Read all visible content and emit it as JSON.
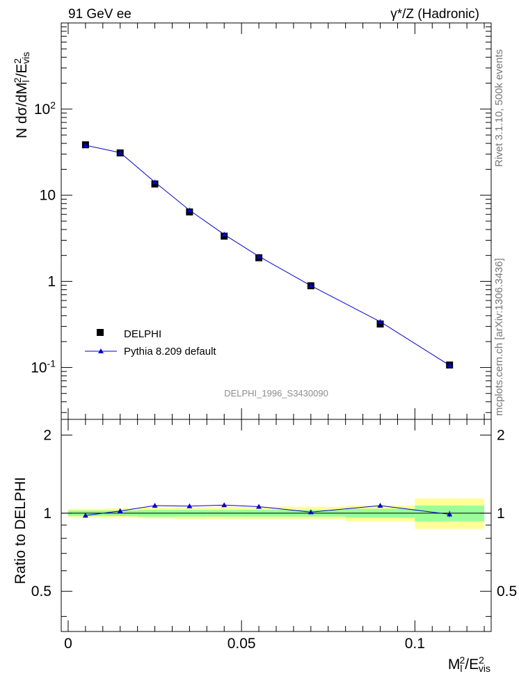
{
  "labels": {
    "top_left": "91 GeV ee",
    "top_right": "γ*/Z (Hadronic)",
    "y_main_parts": [
      "N dσ/dM",
      "l",
      "2",
      "/E",
      "2",
      "vis"
    ],
    "y_ratio": "Ratio to DELPHI",
    "x_parts": [
      "M",
      "l",
      "2",
      "/E",
      "2",
      "vis"
    ],
    "analysis": "DELPHI_1996_S3430090",
    "side_rivet": "Rivet 3.1.10,  500k events",
    "side_mcplots": "mcplots.cern.ch [arXiv:1306.3436]"
  },
  "colors": {
    "data_marker": "#000000",
    "mc_line": "#0000cc",
    "band_inner": "#99ff99",
    "band_outer": "#ffff99"
  },
  "chart_data": [
    {
      "type": "scatter",
      "panel": "main",
      "xlim": [
        -0.002,
        0.122
      ],
      "ylim": [
        0.025,
        1000
      ],
      "yscale": "log",
      "ytick_labels": [
        "10^-1",
        "1",
        "10",
        "10^2"
      ],
      "legend_position": "bottom-left",
      "series": [
        {
          "name": "DELPHI",
          "marker": "square",
          "x": [
            0.005,
            0.015,
            0.025,
            0.035,
            0.045,
            0.055,
            0.07,
            0.09,
            0.11
          ],
          "y": [
            38.5,
            31.0,
            13.5,
            6.4,
            3.35,
            1.88,
            0.89,
            0.32,
            0.107
          ]
        },
        {
          "name": "Pythia 8.209 default",
          "marker": "triangle",
          "x": [
            0.005,
            0.015,
            0.025,
            0.035,
            0.045,
            0.055,
            0.07,
            0.09,
            0.11
          ],
          "y": [
            38.0,
            31.2,
            14.2,
            6.7,
            3.5,
            1.95,
            0.89,
            0.34,
            0.106
          ]
        }
      ]
    },
    {
      "type": "line",
      "panel": "ratio",
      "xlim": [
        -0.002,
        0.122
      ],
      "ylim": [
        0.35,
        2.3
      ],
      "xtick_labels": [
        "0",
        "0.05",
        "0.1"
      ],
      "ytick_labels": [
        "0.5",
        "1",
        "2"
      ],
      "bins": [
        [
          0.0,
          0.01
        ],
        [
          0.01,
          0.02
        ],
        [
          0.02,
          0.03
        ],
        [
          0.03,
          0.04
        ],
        [
          0.04,
          0.05
        ],
        [
          0.05,
          0.06
        ],
        [
          0.06,
          0.08
        ],
        [
          0.08,
          0.1
        ],
        [
          0.1,
          0.12
        ]
      ],
      "band_inner": [
        [
          0.975,
          1.025
        ],
        [
          0.975,
          1.025
        ],
        [
          0.97,
          1.03
        ],
        [
          0.97,
          1.03
        ],
        [
          0.97,
          1.03
        ],
        [
          0.97,
          1.03
        ],
        [
          0.97,
          1.03
        ],
        [
          0.96,
          1.04
        ],
        [
          0.93,
          1.07
        ]
      ],
      "band_outer": [
        [
          0.96,
          1.04
        ],
        [
          0.96,
          1.045
        ],
        [
          0.955,
          1.05
        ],
        [
          0.95,
          1.05
        ],
        [
          0.95,
          1.055
        ],
        [
          0.95,
          1.055
        ],
        [
          0.95,
          1.06
        ],
        [
          0.93,
          1.07
        ],
        [
          0.87,
          1.14
        ]
      ],
      "series": [
        {
          "name": "Pythia 8.209 default",
          "x": [
            0.005,
            0.015,
            0.025,
            0.035,
            0.045,
            0.055,
            0.07,
            0.09,
            0.11
          ],
          "y": [
            0.98,
            1.02,
            1.07,
            1.065,
            1.075,
            1.06,
            1.01,
            1.07,
            0.99
          ]
        }
      ]
    }
  ]
}
